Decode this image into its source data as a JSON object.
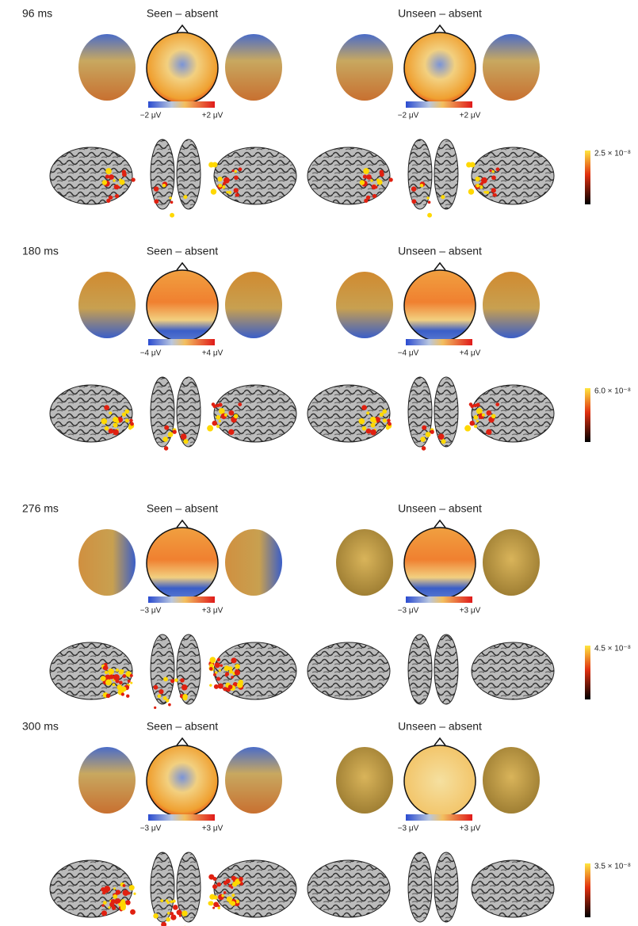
{
  "panels": [
    {
      "time": "96 ms",
      "seen": {
        "title": "Seen – absent",
        "scale_min": "−2 μV",
        "scale_max": "+2 μV"
      },
      "unseen": {
        "title": "Unseen – absent",
        "scale_min": "−2 μV",
        "scale_max": "+2 μV"
      },
      "source_scale": "2.5 × 10⁻⁸"
    },
    {
      "time": "180 ms",
      "seen": {
        "title": "Seen – absent",
        "scale_min": "−4 μV",
        "scale_max": "+4 μV"
      },
      "unseen": {
        "title": "Unseen – absent",
        "scale_min": "−4 μV",
        "scale_max": "+4 μV"
      },
      "source_scale": "6.0 × 10⁻⁸"
    },
    {
      "time": "276 ms",
      "seen": {
        "title": "Seen – absent",
        "scale_min": "−3 μV",
        "scale_max": "+3 μV"
      },
      "unseen": {
        "title": "Unseen – absent",
        "scale_min": "−3 μV",
        "scale_max": "+3 μV"
      },
      "source_scale": "4.5 × 10⁻⁸"
    },
    {
      "time": "300 ms",
      "seen": {
        "title": "Seen – absent",
        "scale_min": "−3 μV",
        "scale_max": "+3 μV"
      },
      "unseen": {
        "title": "Unseen – absent",
        "scale_min": "−3 μV",
        "scale_max": "+3 μV"
      },
      "source_scale": "3.5 × 10⁻⁸"
    }
  ]
}
